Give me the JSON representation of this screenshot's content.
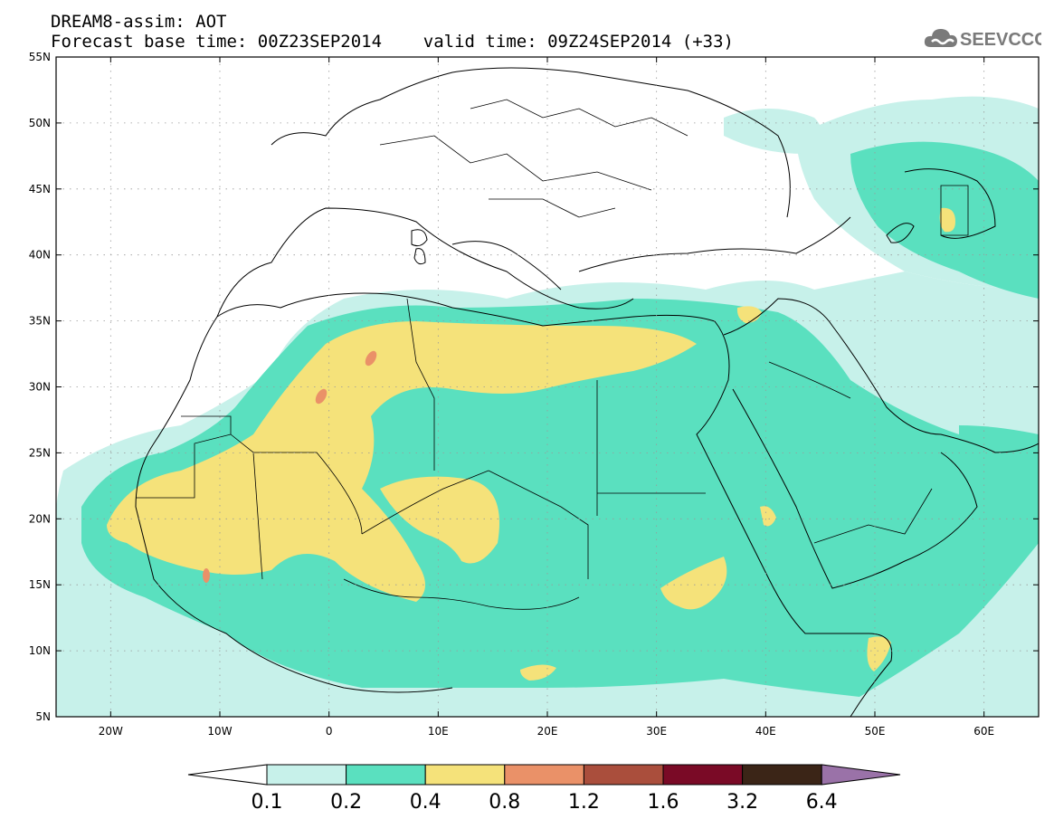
{
  "header": {
    "line1": "DREAM8-assim: AOT",
    "line2": "Forecast base time: 00Z23SEP2014    valid time: 09Z24SEP2014 (+33)"
  },
  "logo": {
    "text": "SEEVCCC",
    "icon": "cloud-icon",
    "color": "#7a7a7a"
  },
  "map": {
    "extent": {
      "lon_min": -25,
      "lon_max": 65,
      "lat_min": 5,
      "lat_max": 55
    },
    "lat_ticks": [
      {
        "lat": 55,
        "label": "55N"
      },
      {
        "lat": 50,
        "label": "50N"
      },
      {
        "lat": 45,
        "label": "45N"
      },
      {
        "lat": 40,
        "label": "40N"
      },
      {
        "lat": 35,
        "label": "35N"
      },
      {
        "lat": 30,
        "label": "30N"
      },
      {
        "lat": 25,
        "label": "25N"
      },
      {
        "lat": 20,
        "label": "20N"
      },
      {
        "lat": 15,
        "label": "15N"
      },
      {
        "lat": 10,
        "label": "10N"
      },
      {
        "lat": 5,
        "label": "5N"
      }
    ],
    "lon_ticks": [
      {
        "lon": -20,
        "label": "20W"
      },
      {
        "lon": -10,
        "label": "10W"
      },
      {
        "lon": 0,
        "label": "0"
      },
      {
        "lon": 10,
        "label": "10E"
      },
      {
        "lon": 20,
        "label": "20E"
      },
      {
        "lon": 30,
        "label": "30E"
      },
      {
        "lon": 40,
        "label": "40E"
      },
      {
        "lon": 50,
        "label": "50E"
      },
      {
        "lon": 60,
        "label": "60E"
      }
    ],
    "grid": true
  },
  "colorbar": {
    "levels": [
      "0.1",
      "0.2",
      "0.4",
      "0.8",
      "1.2",
      "1.6",
      "3.2",
      "6.4"
    ],
    "colors": [
      "#c7f1ea",
      "#5ae0bf",
      "#f5e27a",
      "#ea9168",
      "#aa4e3c",
      "#7a0a26",
      "#3b2517",
      "#9a72a8"
    ],
    "under_color": "#ffffff"
  }
}
